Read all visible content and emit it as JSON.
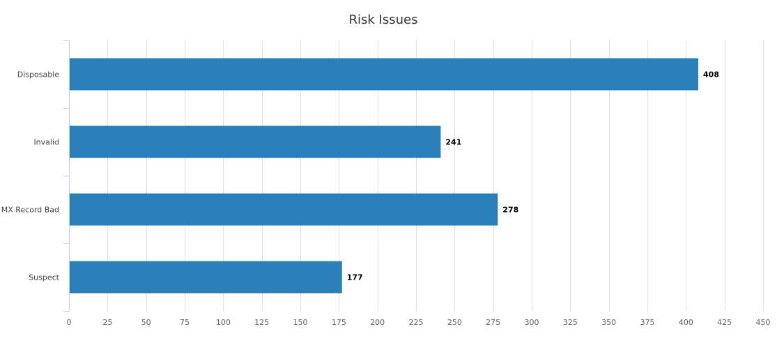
{
  "chart_data": {
    "type": "bar",
    "orientation": "horizontal",
    "title": "Risk Issues",
    "categories": [
      "Disposable",
      "Invalid",
      "MX Record Bad",
      "Suspect"
    ],
    "values": [
      408,
      241,
      278,
      177
    ],
    "xlabel": "",
    "ylabel": "",
    "xlim": [
      0,
      450
    ],
    "x_ticks": [
      0,
      25,
      50,
      75,
      100,
      125,
      150,
      175,
      200,
      225,
      250,
      275,
      300,
      325,
      350,
      375,
      400,
      425,
      450
    ],
    "grid": true,
    "legend": "none",
    "data_labels": true,
    "bar_color": "#2a7fb8",
    "grid_color": "#e0e0e0"
  }
}
